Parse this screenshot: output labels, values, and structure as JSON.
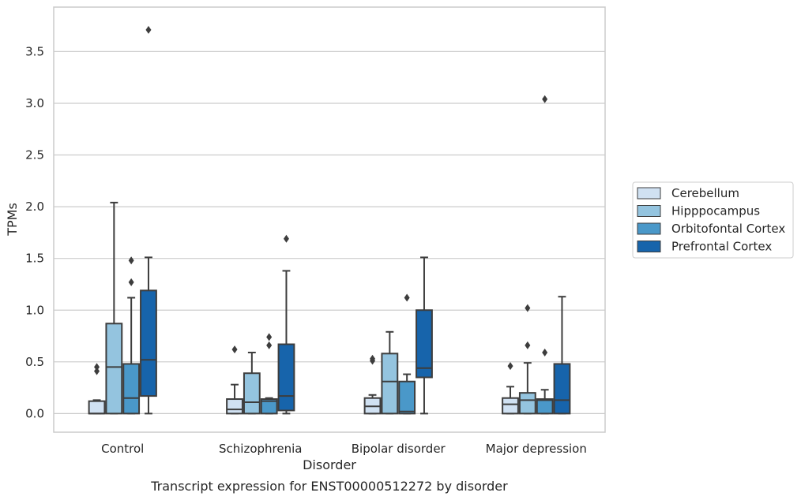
{
  "caption": "Transcript expression for ENST00000512272 by disorder",
  "chart_data": {
    "type": "boxplot",
    "xlabel": "Disorder",
    "ylabel": "TPMs",
    "ylim": [
      -0.18,
      3.93
    ],
    "yticks": [
      "0.0",
      "0.5",
      "1.0",
      "1.5",
      "2.0",
      "2.5",
      "3.0",
      "3.5"
    ],
    "categories": [
      "Control",
      "Schizophrenia",
      "Bipolar disorder",
      "Major depression"
    ],
    "grid": "horizontal",
    "legend_position": "right",
    "series": [
      {
        "name": "Cerebellum",
        "color": "#d0e1f2",
        "boxes": [
          {
            "whislo": 0.0,
            "q1": 0.0,
            "med": 0.0,
            "q3": 0.12,
            "whishi": 0.13,
            "fliers": [
              0.41,
              0.45
            ]
          },
          {
            "whislo": 0.0,
            "q1": 0.0,
            "med": 0.04,
            "q3": 0.14,
            "whishi": 0.28,
            "fliers": [
              0.62
            ]
          },
          {
            "whislo": 0.0,
            "q1": 0.0,
            "med": 0.07,
            "q3": 0.15,
            "whishi": 0.18,
            "fliers": [
              0.51,
              0.53
            ]
          },
          {
            "whislo": 0.0,
            "q1": 0.0,
            "med": 0.09,
            "q3": 0.15,
            "whishi": 0.26,
            "fliers": [
              0.46
            ]
          }
        ]
      },
      {
        "name": "Hipppocampus",
        "color": "#94c4df",
        "boxes": [
          {
            "whislo": 0.0,
            "q1": 0.0,
            "med": 0.45,
            "q3": 0.87,
            "whishi": 2.04,
            "fliers": []
          },
          {
            "whislo": 0.0,
            "q1": 0.0,
            "med": 0.11,
            "q3": 0.39,
            "whishi": 0.59,
            "fliers": []
          },
          {
            "whislo": 0.0,
            "q1": 0.0,
            "med": 0.31,
            "q3": 0.58,
            "whishi": 0.79,
            "fliers": []
          },
          {
            "whislo": 0.0,
            "q1": 0.0,
            "med": 0.13,
            "q3": 0.2,
            "whishi": 0.49,
            "fliers": [
              0.66,
              1.02
            ]
          }
        ]
      },
      {
        "name": "Orbitofontal Cortex",
        "color": "#4a98c9",
        "boxes": [
          {
            "whislo": 0.0,
            "q1": 0.0,
            "med": 0.15,
            "q3": 0.48,
            "whishi": 1.12,
            "fliers": [
              1.27,
              1.48
            ]
          },
          {
            "whislo": 0.0,
            "q1": 0.0,
            "med": 0.12,
            "q3": 0.14,
            "whishi": 0.15,
            "fliers": [
              0.66,
              0.74
            ]
          },
          {
            "whislo": 0.0,
            "q1": 0.0,
            "med": 0.02,
            "q3": 0.31,
            "whishi": 0.38,
            "fliers": [
              1.12
            ]
          },
          {
            "whislo": 0.0,
            "q1": 0.0,
            "med": 0.13,
            "q3": 0.14,
            "whishi": 0.23,
            "fliers": [
              0.59,
              3.04
            ]
          }
        ]
      },
      {
        "name": "Prefrontal Cortex",
        "color": "#1764ab",
        "boxes": [
          {
            "whislo": 0.0,
            "q1": 0.17,
            "med": 0.52,
            "q3": 1.19,
            "whishi": 1.51,
            "fliers": [
              3.71
            ]
          },
          {
            "whislo": 0.0,
            "q1": 0.03,
            "med": 0.17,
            "q3": 0.67,
            "whishi": 1.38,
            "fliers": [
              1.69
            ]
          },
          {
            "whislo": 0.0,
            "q1": 0.35,
            "med": 0.44,
            "q3": 1.0,
            "whishi": 1.51,
            "fliers": []
          },
          {
            "whislo": 0.0,
            "q1": 0.0,
            "med": 0.13,
            "q3": 0.48,
            "whishi": 1.13,
            "fliers": []
          }
        ]
      }
    ]
  }
}
